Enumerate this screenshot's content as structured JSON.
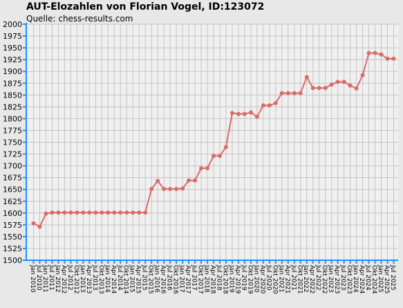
{
  "chart_data": {
    "type": "line",
    "title": "AUT-Elozahlen von Florian Vogel, ID:123072",
    "subtitle": "Quelle: chess-results.com",
    "ylim": [
      1500,
      2000
    ],
    "yticks": [
      1500,
      1525,
      1550,
      1575,
      1600,
      1625,
      1650,
      1675,
      1700,
      1725,
      1750,
      1775,
      1800,
      1825,
      1850,
      1875,
      1900,
      1925,
      1950,
      1975,
      2000
    ],
    "grid": true,
    "colors": {
      "line": "#d96b6b",
      "axis": "#1e90ff",
      "grid": "#c4c4c4",
      "plot_bg": "#f0f0f0",
      "page_bg": "#e8e8e8"
    },
    "categories": [
      "Jan 2010",
      "Jul 2010",
      "Jan 2011",
      "Jul 2011",
      "Jan 2012",
      "Apr 2012",
      "Jul 2012",
      "Okt 2012",
      "Jan 2013",
      "Apr 2013",
      "Jul 2013",
      "Okt 2013",
      "Jan 2014",
      "Apr 2014",
      "Jul 2014",
      "Okt 2014",
      "Jan 2015",
      "Apr 2015",
      "Jul 2015",
      "Okt 2015",
      "Jan 2016",
      "Apr 2016",
      "Jul 2016",
      "Okt 2016",
      "Jan 2017",
      "Apr 2017",
      "Jul 2017",
      "Okt 2017",
      "Jan 2018",
      "Apr 2018",
      "Jul 2018",
      "Okt 2018",
      "Jan 2019",
      "Apr 2019",
      "Jul 2019",
      "Okt 2019",
      "Jan 2020",
      "Apr 2020",
      "Jul 2020",
      "Okt 2020",
      "Jan 2021",
      "Apr 2021",
      "Jul 2021",
      "Okt 2021",
      "Jan 2022",
      "Apr 2022",
      "Jul 2022",
      "Okt 2022",
      "Jan 2023",
      "Apr 2023",
      "Jul 2023",
      "Okt 2023",
      "Jan 2024",
      "Apr 2024",
      "Jul 2024",
      "Okt 2024",
      "Jan 2025",
      "Apr 2025",
      "Jul 2025"
    ],
    "series": [
      {
        "values": [
          1578,
          1571,
          1599,
          1601,
          1601,
          1601,
          1601,
          1601,
          1601,
          1601,
          1601,
          1601,
          1601,
          1601,
          1601,
          1601,
          1601,
          1601,
          1601,
          1651,
          1668,
          1651,
          1651,
          1651,
          1652,
          1669,
          1669,
          1695,
          1695,
          1721,
          1721,
          1740,
          1812,
          1810,
          1810,
          1813,
          1804,
          1828,
          1828,
          1833,
          1854,
          1854,
          1854,
          1854,
          1888,
          1865,
          1865,
          1865,
          1872,
          1878,
          1878,
          1870,
          1864,
          1892,
          1939,
          1939,
          1936,
          1927,
          1927
        ]
      }
    ]
  }
}
